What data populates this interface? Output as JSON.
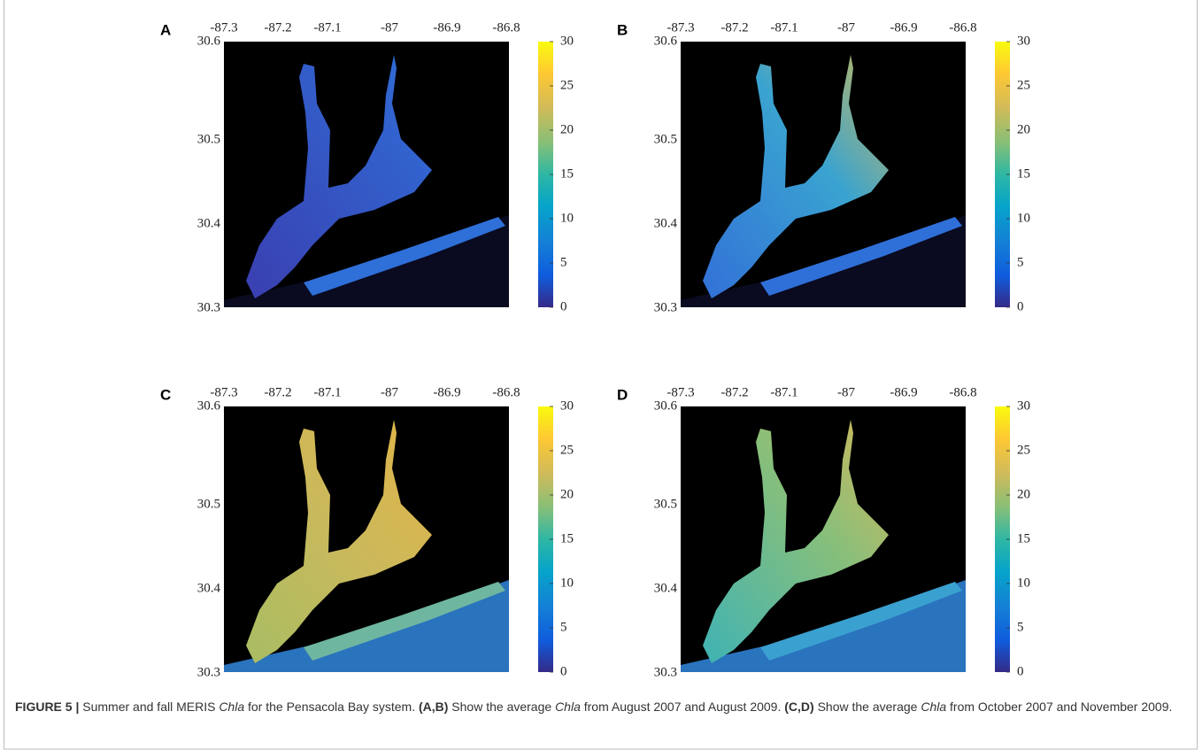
{
  "panels": [
    {
      "label": "A",
      "x_ticks": [
        -87.3,
        -87.2,
        -87.1,
        -87,
        -86.9,
        -86.8
      ],
      "y_ticks": [
        30.6,
        30.5,
        30.4,
        30.3
      ],
      "colorbar_ticks": [
        0,
        5,
        10,
        15,
        20,
        25,
        30
      ]
    },
    {
      "label": "B",
      "x_ticks": [
        -87.3,
        -87.2,
        -87.1,
        -87,
        -86.9,
        -86.8
      ],
      "y_ticks": [
        30.6,
        30.5,
        30.4,
        30.3
      ],
      "colorbar_ticks": [
        0,
        5,
        10,
        15,
        20,
        25,
        30
      ]
    },
    {
      "label": "C",
      "x_ticks": [
        -87.3,
        -87.2,
        -87.1,
        -87,
        -86.9,
        -86.8
      ],
      "y_ticks": [
        30.6,
        30.5,
        30.4,
        30.3
      ],
      "colorbar_ticks": [
        0,
        5,
        10,
        15,
        20,
        25,
        30
      ]
    },
    {
      "label": "D",
      "x_ticks": [
        -87.3,
        -87.2,
        -87.1,
        -87,
        -86.9,
        -86.8
      ],
      "y_ticks": [
        30.6,
        30.5,
        30.4,
        30.3
      ],
      "colorbar_ticks": [
        0,
        5,
        10,
        15,
        20,
        25,
        30
      ]
    }
  ],
  "caption": {
    "parts": [
      "FIGURE 5 |",
      " Summer and fall MERIS ",
      "Chla",
      " for the Pensacola Bay system. ",
      "(A,B)",
      " Show the average ",
      "Chla",
      " from August 2007 and August 2009. ",
      "(C,D)",
      " Show the average ",
      "Chla",
      " from October 2007 and November 2009."
    ]
  }
}
